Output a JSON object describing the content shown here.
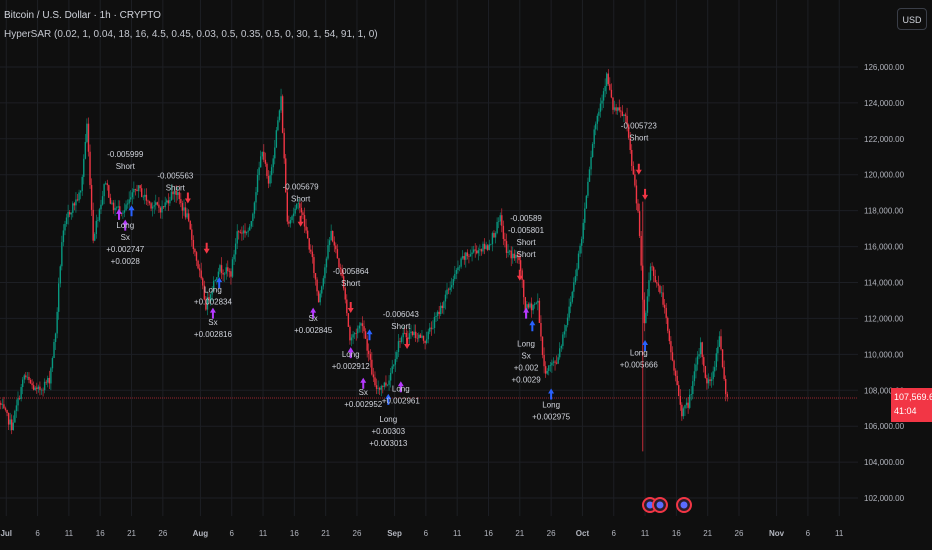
{
  "header": {
    "symbol": "Bitcoin / U.S. Dollar · 1h · CRYPTO",
    "indicator": "HyperSAR (0.02, 1, 0.04, 18, 16, 4.5, 0.45, 0.03, 0.5, 0.35, 0.5, 0, 30, 1, 54, 91, 1, 0)"
  },
  "currency_button": "USD",
  "last_price": {
    "value": "107,569.62",
    "countdown": "41:04"
  },
  "colors": {
    "background": "#0f0f0f",
    "grid": "#1d1f24",
    "up": "#089981",
    "down": "#f23645",
    "long_arrow": "#2962ff",
    "exit_arrow": "#b639ff",
    "short_arrow": "#f23645",
    "label_text": "#d1d4dc",
    "axis_text": "#b2b5be"
  },
  "chart_data": {
    "type": "candlestick",
    "y_axis": {
      "ticks": [
        102000,
        104000,
        106000,
        108000,
        110000,
        112000,
        114000,
        116000,
        118000,
        120000,
        122000,
        124000,
        126000
      ],
      "tick_labels": [
        "102,000.00",
        "104,000.00",
        "106,000.00",
        "108,000.00",
        "110,000.00",
        "112,000.00",
        "114,000.00",
        "116,000.00",
        "118,000.00",
        "120,000.00",
        "122,000.00",
        "124,000.00",
        "126,000.00"
      ],
      "range": [
        101000,
        127500
      ],
      "position": "right"
    },
    "x_axis": {
      "range": [
        "2025-06-30",
        "2025-11-14"
      ],
      "ticks": [
        {
          "date": "2025-07-01",
          "label": "Jul",
          "bold": true
        },
        {
          "date": "2025-07-06",
          "label": "6"
        },
        {
          "date": "2025-07-11",
          "label": "11"
        },
        {
          "date": "2025-07-16",
          "label": "16"
        },
        {
          "date": "2025-07-21",
          "label": "21"
        },
        {
          "date": "2025-07-26",
          "label": "26"
        },
        {
          "date": "2025-08-01",
          "label": "Aug",
          "bold": true
        },
        {
          "date": "2025-08-06",
          "label": "6"
        },
        {
          "date": "2025-08-11",
          "label": "11"
        },
        {
          "date": "2025-08-16",
          "label": "16"
        },
        {
          "date": "2025-08-21",
          "label": "21"
        },
        {
          "date": "2025-08-26",
          "label": "26"
        },
        {
          "date": "2025-09-01",
          "label": "Sep",
          "bold": true
        },
        {
          "date": "2025-09-06",
          "label": "6"
        },
        {
          "date": "2025-09-11",
          "label": "11"
        },
        {
          "date": "2025-09-16",
          "label": "16"
        },
        {
          "date": "2025-09-21",
          "label": "21"
        },
        {
          "date": "2025-09-26",
          "label": "26"
        },
        {
          "date": "2025-10-01",
          "label": "Oct",
          "bold": true
        },
        {
          "date": "2025-10-06",
          "label": "6"
        },
        {
          "date": "2025-10-11",
          "label": "11"
        },
        {
          "date": "2025-10-16",
          "label": "16"
        },
        {
          "date": "2025-10-21",
          "label": "21"
        },
        {
          "date": "2025-10-26",
          "label": "26"
        },
        {
          "date": "2025-11-01",
          "label": "Nov",
          "bold": true
        },
        {
          "date": "2025-11-06",
          "label": "6"
        },
        {
          "date": "2025-11-11",
          "label": "11"
        }
      ]
    },
    "grid": true,
    "current_price": 107569.62,
    "price_path": [
      {
        "date": "2025-06-30",
        "price": 107300
      },
      {
        "date": "2025-07-02",
        "price": 106000
      },
      {
        "date": "2025-07-04",
        "price": 108800
      },
      {
        "date": "2025-07-06",
        "price": 107900
      },
      {
        "date": "2025-07-08",
        "price": 108600
      },
      {
        "date": "2025-07-09",
        "price": 111200
      },
      {
        "date": "2025-07-10",
        "price": 116300
      },
      {
        "date": "2025-07-11",
        "price": 117800
      },
      {
        "date": "2025-07-13",
        "price": 119000
      },
      {
        "date": "2025-07-14",
        "price": 122800
      },
      {
        "date": "2025-07-15",
        "price": 116500
      },
      {
        "date": "2025-07-17",
        "price": 119700
      },
      {
        "date": "2025-07-18",
        "price": 118200
      },
      {
        "date": "2025-07-20",
        "price": 118000
      },
      {
        "date": "2025-07-22",
        "price": 119300
      },
      {
        "date": "2025-07-24",
        "price": 118400
      },
      {
        "date": "2025-07-26",
        "price": 118100
      },
      {
        "date": "2025-07-28",
        "price": 119200
      },
      {
        "date": "2025-07-30",
        "price": 117600
      },
      {
        "date": "2025-08-01",
        "price": 114500
      },
      {
        "date": "2025-08-02",
        "price": 112700
      },
      {
        "date": "2025-08-04",
        "price": 114800
      },
      {
        "date": "2025-08-06",
        "price": 114500
      },
      {
        "date": "2025-08-07",
        "price": 116800
      },
      {
        "date": "2025-08-09",
        "price": 116900
      },
      {
        "date": "2025-08-10",
        "price": 119200
      },
      {
        "date": "2025-08-11",
        "price": 121500
      },
      {
        "date": "2025-08-12",
        "price": 119300
      },
      {
        "date": "2025-08-14",
        "price": 124200
      },
      {
        "date": "2025-08-15",
        "price": 117400
      },
      {
        "date": "2025-08-17",
        "price": 118400
      },
      {
        "date": "2025-08-19",
        "price": 115200
      },
      {
        "date": "2025-08-20",
        "price": 113000
      },
      {
        "date": "2025-08-22",
        "price": 116800
      },
      {
        "date": "2025-08-24",
        "price": 113900
      },
      {
        "date": "2025-08-25",
        "price": 110800
      },
      {
        "date": "2025-08-27",
        "price": 111800
      },
      {
        "date": "2025-08-29",
        "price": 108100
      },
      {
        "date": "2025-08-31",
        "price": 108400
      },
      {
        "date": "2025-09-02",
        "price": 110900
      },
      {
        "date": "2025-09-04",
        "price": 111200
      },
      {
        "date": "2025-09-06",
        "price": 110800
      },
      {
        "date": "2025-09-08",
        "price": 112200
      },
      {
        "date": "2025-09-10",
        "price": 113800
      },
      {
        "date": "2025-09-12",
        "price": 115300
      },
      {
        "date": "2025-09-14",
        "price": 115800
      },
      {
        "date": "2025-09-16",
        "price": 116000
      },
      {
        "date": "2025-09-18",
        "price": 117500
      },
      {
        "date": "2025-09-19",
        "price": 115700
      },
      {
        "date": "2025-09-21",
        "price": 115300
      },
      {
        "date": "2025-09-22",
        "price": 112500
      },
      {
        "date": "2025-09-24",
        "price": 112900
      },
      {
        "date": "2025-09-25",
        "price": 109100
      },
      {
        "date": "2025-09-27",
        "price": 109600
      },
      {
        "date": "2025-09-29",
        "price": 112500
      },
      {
        "date": "2025-10-01",
        "price": 116500
      },
      {
        "date": "2025-10-02",
        "price": 119800
      },
      {
        "date": "2025-10-03",
        "price": 122500
      },
      {
        "date": "2025-10-05",
        "price": 125500
      },
      {
        "date": "2025-10-06",
        "price": 123700
      },
      {
        "date": "2025-10-08",
        "price": 123200
      },
      {
        "date": "2025-10-10",
        "price": 118000
      },
      {
        "date": "2025-10-11",
        "price": 111500
      },
      {
        "date": "2025-10-12",
        "price": 115000
      },
      {
        "date": "2025-10-14",
        "price": 113000
      },
      {
        "date": "2025-10-15",
        "price": 110600
      },
      {
        "date": "2025-10-17",
        "price": 106800
      },
      {
        "date": "2025-10-18",
        "price": 107200
      },
      {
        "date": "2025-10-20",
        "price": 110500
      },
      {
        "date": "2025-10-21",
        "price": 108300
      },
      {
        "date": "2025-10-22",
        "price": 108900
      },
      {
        "date": "2025-10-23",
        "price": 111200
      },
      {
        "date": "2025-10-24",
        "price": 107570
      }
    ],
    "annotations": [
      {
        "date": "2025-07-20",
        "price": 120200,
        "lines": [
          "-0.005999",
          "Short"
        ],
        "anchor": "above"
      },
      {
        "date": "2025-07-20",
        "price": 117600,
        "lines": [
          "Long",
          "Sx",
          "+0.002747",
          "+0.0028"
        ],
        "anchor": "below"
      },
      {
        "date": "2025-07-28",
        "price": 119000,
        "lines": [
          "-0.005563",
          "Short"
        ],
        "anchor": "above"
      },
      {
        "date": "2025-08-03",
        "price": 114000,
        "lines": [
          "Long",
          "+0.002834"
        ],
        "anchor": "below"
      },
      {
        "date": "2025-08-03",
        "price": 112200,
        "lines": [
          "Sx",
          "+0.002816"
        ],
        "anchor": "below"
      },
      {
        "date": "2025-08-17",
        "price": 118400,
        "lines": [
          "-0.005679",
          "Short"
        ],
        "anchor": "above"
      },
      {
        "date": "2025-08-19",
        "price": 112400,
        "lines": [
          "Sx",
          "+0.002845"
        ],
        "anchor": "below"
      },
      {
        "date": "2025-08-25",
        "price": 113700,
        "lines": [
          "-0.005864",
          "Short"
        ],
        "anchor": "above"
      },
      {
        "date": "2025-08-25",
        "price": 110400,
        "lines": [
          "Long",
          "+0.002912"
        ],
        "anchor": "below"
      },
      {
        "date": "2025-08-27",
        "price": 108300,
        "lines": [
          "Sx",
          "+0.002952"
        ],
        "anchor": "below"
      },
      {
        "date": "2025-09-02",
        "price": 111300,
        "lines": [
          "-0.006043",
          "Short"
        ],
        "anchor": "above"
      },
      {
        "date": "2025-09-02",
        "price": 108500,
        "lines": [
          "Long",
          "+0.002961"
        ],
        "anchor": "below"
      },
      {
        "date": "2025-08-31",
        "price": 106800,
        "lines": [
          "Long",
          "+0.00303",
          "+0.003013"
        ],
        "anchor": "below"
      },
      {
        "date": "2025-09-22",
        "price": 115300,
        "lines": [
          "-0.00589",
          "-0.005801",
          "Short",
          "Short"
        ],
        "anchor": "above"
      },
      {
        "date": "2025-09-22",
        "price": 111000,
        "lines": [
          "Long",
          "Sx",
          "+0.002",
          "+0.0029"
        ],
        "anchor": "below"
      },
      {
        "date": "2025-09-26",
        "price": 107600,
        "lines": [
          "Long",
          "+0.002975"
        ],
        "anchor": "below"
      },
      {
        "date": "2025-10-10",
        "price": 121800,
        "lines": [
          "-0.005723",
          "Short"
        ],
        "anchor": "above"
      },
      {
        "date": "2025-10-10",
        "price": 110500,
        "lines": [
          "Long",
          "+0.005666"
        ],
        "anchor": "below"
      }
    ],
    "signals": [
      {
        "date": "2025-07-19",
        "price": 118100,
        "kind": "exit"
      },
      {
        "date": "2025-07-20",
        "price": 117500,
        "kind": "exit"
      },
      {
        "date": "2025-07-21",
        "price": 118300,
        "kind": "long"
      },
      {
        "date": "2025-07-30",
        "price": 118400,
        "kind": "short"
      },
      {
        "date": "2025-08-02",
        "price": 115600,
        "kind": "short"
      },
      {
        "date": "2025-08-03",
        "price": 112600,
        "kind": "exit"
      },
      {
        "date": "2025-08-04",
        "price": 114300,
        "kind": "long"
      },
      {
        "date": "2025-08-17",
        "price": 117100,
        "kind": "short"
      },
      {
        "date": "2025-08-19",
        "price": 112600,
        "kind": "exit"
      },
      {
        "date": "2025-08-25",
        "price": 112300,
        "kind": "short"
      },
      {
        "date": "2025-08-25",
        "price": 110400,
        "kind": "exit"
      },
      {
        "date": "2025-08-27",
        "price": 108700,
        "kind": "exit"
      },
      {
        "date": "2025-08-28",
        "price": 111400,
        "kind": "long"
      },
      {
        "date": "2025-08-31",
        "price": 107800,
        "kind": "long"
      },
      {
        "date": "2025-09-02",
        "price": 108500,
        "kind": "exit"
      },
      {
        "date": "2025-09-03",
        "price": 110300,
        "kind": "short"
      },
      {
        "date": "2025-09-21",
        "price": 114100,
        "kind": "short"
      },
      {
        "date": "2025-09-22",
        "price": 112600,
        "kind": "exit"
      },
      {
        "date": "2025-09-23",
        "price": 111900,
        "kind": "long"
      },
      {
        "date": "2025-09-26",
        "price": 108100,
        "kind": "long"
      },
      {
        "date": "2025-10-10",
        "price": 120000,
        "kind": "short"
      },
      {
        "date": "2025-10-11",
        "price": 118600,
        "kind": "short"
      },
      {
        "date": "2025-10-11",
        "price": 110800,
        "kind": "long"
      }
    ]
  }
}
